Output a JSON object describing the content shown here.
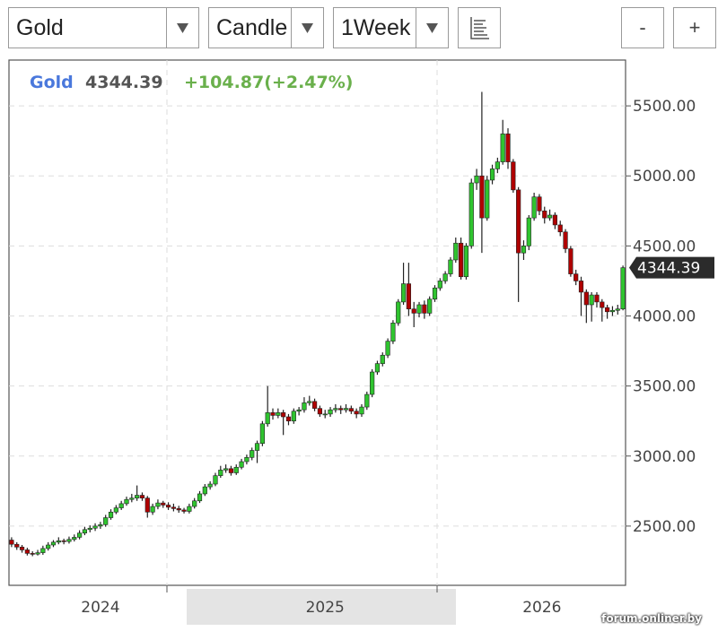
{
  "toolbar": {
    "symbol": "Gold",
    "chart_type": "Candle",
    "interval": "1Week",
    "zoom_out": "-",
    "zoom_in": "+"
  },
  "chart_data": {
    "type": "candlestick",
    "title": "Gold",
    "change": "+104.87(+2.47%)",
    "up_color": "#2fc42f",
    "down_color": "#b00000",
    "ohlc": [
      [
        2400,
        2420,
        2350,
        2370
      ],
      [
        2370,
        2385,
        2330,
        2350
      ],
      [
        2350,
        2365,
        2310,
        2330
      ],
      [
        2330,
        2345,
        2290,
        2305
      ],
      [
        2305,
        2320,
        2285,
        2300
      ],
      [
        2300,
        2330,
        2290,
        2310
      ],
      [
        2310,
        2360,
        2295,
        2340
      ],
      [
        2340,
        2385,
        2325,
        2365
      ],
      [
        2365,
        2400,
        2350,
        2385
      ],
      [
        2385,
        2420,
        2370,
        2395
      ],
      [
        2395,
        2410,
        2370,
        2390
      ],
      [
        2390,
        2425,
        2375,
        2405
      ],
      [
        2405,
        2440,
        2390,
        2420
      ],
      [
        2420,
        2470,
        2405,
        2450
      ],
      [
        2450,
        2495,
        2435,
        2475
      ],
      [
        2475,
        2505,
        2455,
        2485
      ],
      [
        2485,
        2520,
        2465,
        2500
      ],
      [
        2500,
        2530,
        2480,
        2510
      ],
      [
        2510,
        2580,
        2495,
        2560
      ],
      [
        2560,
        2620,
        2545,
        2600
      ],
      [
        2600,
        2650,
        2585,
        2630
      ],
      [
        2630,
        2680,
        2615,
        2660
      ],
      [
        2660,
        2710,
        2645,
        2690
      ],
      [
        2690,
        2730,
        2670,
        2700
      ],
      [
        2700,
        2790,
        2680,
        2720
      ],
      [
        2720,
        2740,
        2680,
        2700
      ],
      [
        2700,
        2715,
        2560,
        2600
      ],
      [
        2600,
        2660,
        2580,
        2640
      ],
      [
        2640,
        2690,
        2620,
        2665
      ],
      [
        2665,
        2680,
        2630,
        2650
      ],
      [
        2650,
        2670,
        2615,
        2635
      ],
      [
        2635,
        2660,
        2605,
        2625
      ],
      [
        2625,
        2645,
        2595,
        2615
      ],
      [
        2615,
        2630,
        2590,
        2605
      ],
      [
        2605,
        2660,
        2590,
        2640
      ],
      [
        2640,
        2700,
        2625,
        2680
      ],
      [
        2680,
        2750,
        2665,
        2730
      ],
      [
        2730,
        2800,
        2715,
        2780
      ],
      [
        2780,
        2820,
        2760,
        2800
      ],
      [
        2800,
        2880,
        2785,
        2860
      ],
      [
        2860,
        2930,
        2845,
        2900
      ],
      [
        2900,
        2940,
        2880,
        2910
      ],
      [
        2910,
        2930,
        2860,
        2880
      ],
      [
        2880,
        2940,
        2865,
        2920
      ],
      [
        2920,
        2980,
        2905,
        2960
      ],
      [
        2960,
        3010,
        2940,
        2990
      ],
      [
        2990,
        3060,
        2970,
        3040
      ],
      [
        3040,
        3110,
        2950,
        3090
      ],
      [
        3090,
        3250,
        3070,
        3230
      ],
      [
        3230,
        3500,
        3210,
        3310
      ],
      [
        3310,
        3340,
        3260,
        3290
      ],
      [
        3290,
        3340,
        3270,
        3310
      ],
      [
        3310,
        3330,
        3150,
        3280
      ],
      [
        3280,
        3300,
        3220,
        3250
      ],
      [
        3250,
        3340,
        3230,
        3320
      ],
      [
        3320,
        3350,
        3290,
        3330
      ],
      [
        3330,
        3420,
        3310,
        3380
      ],
      [
        3380,
        3430,
        3360,
        3390
      ],
      [
        3390,
        3410,
        3320,
        3340
      ],
      [
        3340,
        3360,
        3280,
        3300
      ],
      [
        3300,
        3330,
        3270,
        3300
      ],
      [
        3300,
        3350,
        3280,
        3330
      ],
      [
        3330,
        3370,
        3310,
        3340
      ],
      [
        3340,
        3360,
        3300,
        3330
      ],
      [
        3330,
        3370,
        3310,
        3340
      ],
      [
        3340,
        3360,
        3300,
        3320
      ],
      [
        3320,
        3340,
        3270,
        3300
      ],
      [
        3300,
        3370,
        3280,
        3350
      ],
      [
        3350,
        3460,
        3330,
        3440
      ],
      [
        3440,
        3620,
        3420,
        3600
      ],
      [
        3600,
        3680,
        3580,
        3660
      ],
      [
        3660,
        3740,
        3640,
        3720
      ],
      [
        3720,
        3840,
        3700,
        3820
      ],
      [
        3820,
        3970,
        3800,
        3950
      ],
      [
        3950,
        4120,
        3930,
        4100
      ],
      [
        4100,
        4380,
        4080,
        4230
      ],
      [
        4230,
        4380,
        4000,
        4050
      ],
      [
        4050,
        4100,
        3920,
        4020
      ],
      [
        4020,
        4100,
        3990,
        4080
      ],
      [
        4080,
        4110,
        3980,
        4020
      ],
      [
        4020,
        4140,
        4000,
        4120
      ],
      [
        4120,
        4220,
        4100,
        4200
      ],
      [
        4200,
        4270,
        4180,
        4250
      ],
      [
        4250,
        4320,
        4230,
        4300
      ],
      [
        4300,
        4420,
        4280,
        4400
      ],
      [
        4400,
        4560,
        4380,
        4520
      ],
      [
        4520,
        4560,
        4260,
        4280
      ],
      [
        4280,
        4520,
        4260,
        4500
      ],
      [
        4500,
        4980,
        4480,
        4950
      ],
      [
        4950,
        5050,
        4900,
        5000
      ],
      [
        5000,
        5600,
        4450,
        4700
      ],
      [
        4700,
        5000,
        4680,
        4970
      ],
      [
        4970,
        5080,
        4940,
        5050
      ],
      [
        5050,
        5130,
        5020,
        5100
      ],
      [
        5100,
        5400,
        5080,
        5300
      ],
      [
        5300,
        5340,
        5050,
        5100
      ],
      [
        5100,
        5120,
        4880,
        4900
      ],
      [
        4900,
        4920,
        4100,
        4450
      ],
      [
        4450,
        4540,
        4400,
        4500
      ],
      [
        4500,
        4720,
        4470,
        4700
      ],
      [
        4700,
        4880,
        4680,
        4850
      ],
      [
        4850,
        4870,
        4720,
        4750
      ],
      [
        4750,
        4780,
        4660,
        4700
      ],
      [
        4700,
        4760,
        4680,
        4720
      ],
      [
        4720,
        4740,
        4620,
        4650
      ],
      [
        4650,
        4680,
        4570,
        4600
      ],
      [
        4600,
        4620,
        4450,
        4480
      ],
      [
        4480,
        4500,
        4280,
        4300
      ],
      [
        4300,
        4330,
        4220,
        4250
      ],
      [
        4250,
        4280,
        4000,
        4170
      ],
      [
        4170,
        4190,
        3950,
        4080
      ],
      [
        4080,
        4170,
        3960,
        4150
      ],
      [
        4150,
        4170,
        4060,
        4100
      ],
      [
        4100,
        4120,
        3960,
        4060
      ],
      [
        4060,
        4080,
        3980,
        4030
      ],
      [
        4030,
        4070,
        4000,
        4040
      ],
      [
        4040,
        4080,
        4010,
        4050
      ],
      [
        4050,
        4360,
        4040,
        4344.39
      ]
    ],
    "xlim": [
      -0.5,
      117.5
    ],
    "xticks": [
      {
        "value": 17,
        "label": "2024"
      },
      {
        "value": 60,
        "label": "2025"
      },
      {
        "value": 101.5,
        "label": "2026"
      }
    ],
    "ylim": [
      2077,
      5827
    ],
    "yticks": [
      {
        "value": 2500,
        "label": "2500.00"
      },
      {
        "value": 3000,
        "label": "3000.00"
      },
      {
        "value": 3500,
        "label": "3500.00"
      },
      {
        "value": 4000,
        "label": "4000.00"
      },
      {
        "value": 4500,
        "label": "4500.00"
      },
      {
        "value": 5000,
        "label": "5000.00"
      },
      {
        "value": 5500,
        "label": "5500.00"
      }
    ],
    "grid": true
  },
  "watermark": "forum.onliner.by"
}
